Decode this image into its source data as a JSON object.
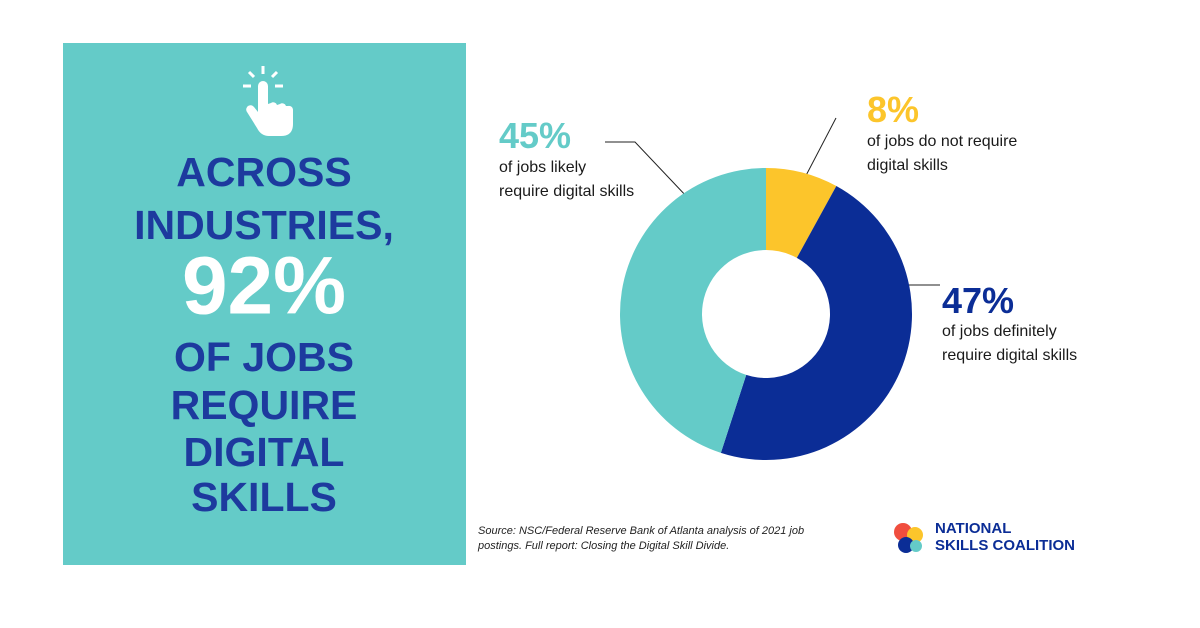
{
  "headline": [
    "ACROSS",
    "INDUSTRIES,",
    "92%",
    "OF JOBS",
    "REQUIRE",
    "DIGITAL",
    "SKILLS"
  ],
  "chart_data": {
    "type": "donut",
    "categories": [
      "of jobs do not require digital skills",
      "of jobs definitely require digital skills",
      "of jobs likely require digital skills"
    ],
    "values": [
      8,
      47,
      45
    ],
    "value_labels": [
      "8%",
      "47%",
      "45%"
    ],
    "colors": [
      "#fcc52b",
      "#0b2d96",
      "#64cbc8"
    ]
  },
  "source": "Source: NSC/Federal Reserve Bank of Atlanta analysis of 2021 job postings. Full report: Closing the Digital Skill Divide.",
  "logo": [
    "NATIONAL",
    "SKILLS COALITION"
  ]
}
